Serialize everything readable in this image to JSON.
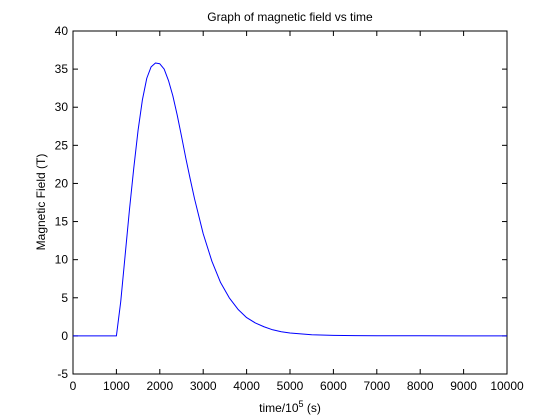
{
  "chart_data": {
    "type": "line",
    "title": "Graph of magnetic field vs time",
    "xlabel_prefix": "time/10",
    "xlabel_exponent": "5",
    "xlabel_suffix": " (s)",
    "ylabel": "Magnetic Field (T)",
    "xlim": [
      0,
      10000
    ],
    "ylim": [
      -5,
      40
    ],
    "xticks": [
      0,
      1000,
      2000,
      3000,
      4000,
      5000,
      6000,
      7000,
      8000,
      9000,
      10000
    ],
    "yticks": [
      -5,
      0,
      5,
      10,
      15,
      20,
      25,
      30,
      35,
      40
    ],
    "grid": false,
    "series": [
      {
        "color": "#0000ff",
        "x": [
          0,
          1000,
          1100,
          1200,
          1300,
          1400,
          1500,
          1600,
          1700,
          1800,
          1900,
          2000,
          2100,
          2200,
          2300,
          2400,
          2500,
          2600,
          2700,
          2800,
          2900,
          3000,
          3200,
          3400,
          3600,
          3800,
          4000,
          4200,
          4400,
          4600,
          4800,
          5000,
          5500,
          6000,
          6500,
          7000,
          8000,
          9000,
          10000
        ],
        "y": [
          0,
          0,
          4.5,
          10.5,
          16.5,
          22,
          27,
          31,
          33.8,
          35.3,
          35.8,
          35.7,
          35,
          33.5,
          31.5,
          29,
          26.2,
          23.3,
          20.6,
          18,
          15.7,
          13.4,
          9.8,
          7,
          5,
          3.5,
          2.4,
          1.7,
          1.2,
          0.8,
          0.55,
          0.38,
          0.15,
          0.06,
          0.03,
          0.02,
          0.01,
          0,
          0
        ]
      }
    ]
  }
}
